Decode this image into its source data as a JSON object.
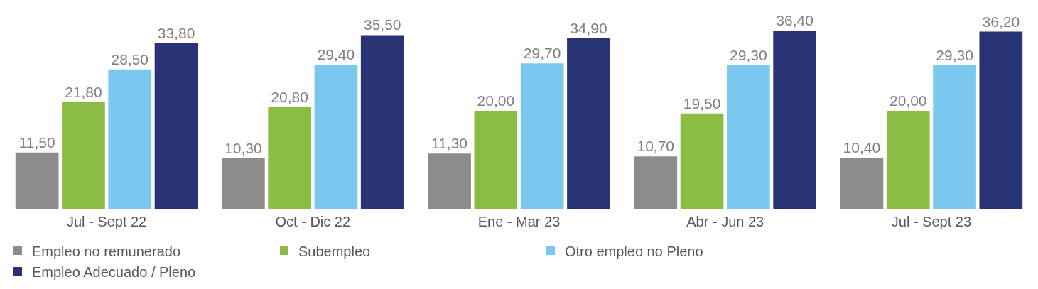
{
  "chart_data": {
    "type": "bar",
    "categories": [
      "Jul - Sept 22",
      "Oct - Dic 22",
      "Ene - Mar 23",
      "Abr - Jun 23",
      "Jul - Sept 23"
    ],
    "series": [
      {
        "name": "Empleo no remunerado",
        "color": "#8c8c8c",
        "values": [
          11.5,
          10.3,
          11.3,
          10.7,
          10.4
        ],
        "value_labels": [
          "11,50",
          "10,30",
          "11,30",
          "10,70",
          "10,40"
        ]
      },
      {
        "name": "Subempleo",
        "color": "#8bbd45",
        "values": [
          21.8,
          20.8,
          20.0,
          19.5,
          20.0
        ],
        "value_labels": [
          "21,80",
          "20,80",
          "20,00",
          "19,50",
          "20,00"
        ]
      },
      {
        "name": "Otro empleo no Pleno",
        "color": "#7ac8ee",
        "values": [
          28.5,
          29.4,
          29.7,
          29.3,
          29.3
        ],
        "value_labels": [
          "28,50",
          "29,40",
          "29,70",
          "29,30",
          "29,30"
        ]
      },
      {
        "name": "Empleo Adecuado / Pleno",
        "color": "#283376",
        "values": [
          33.8,
          35.5,
          34.9,
          36.4,
          36.2
        ],
        "value_labels": [
          "33,80",
          "35,50",
          "34,90",
          "36,40",
          "36,20"
        ]
      }
    ],
    "tick_labels": "x",
    "grid": false,
    "legend": "bottom"
  }
}
